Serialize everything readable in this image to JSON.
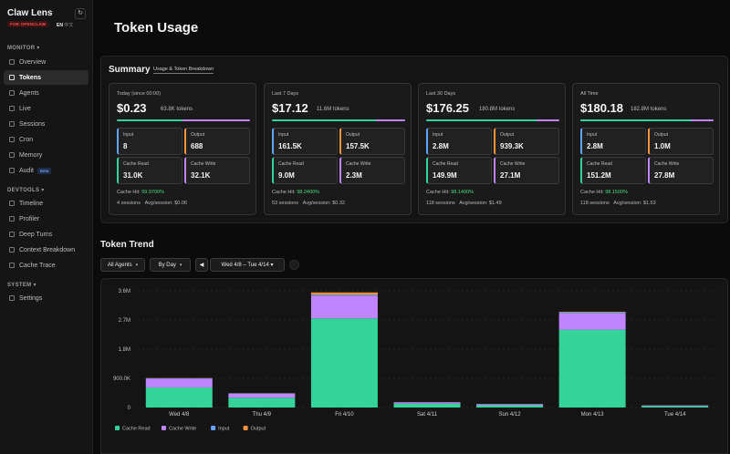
{
  "sidebar": {
    "brand": "Claw Lens",
    "badge": "FOR OPENCLAW",
    "lang_en": "EN",
    "lang_zh": "中文",
    "sections": {
      "monitor": "MONITOR",
      "devtools": "DEVTOOLS",
      "system": "SYSTEM"
    },
    "monitor_items": [
      "Overview",
      "Tokens",
      "Agents",
      "Live",
      "Sessions",
      "Cron",
      "Memory",
      "Audit"
    ],
    "audit_badge": "Beta",
    "devtools_items": [
      "Timeline",
      "Profiler",
      "Deep Turns",
      "Context Breakdown",
      "Cache Trace"
    ],
    "system_items": [
      "Settings"
    ]
  },
  "page": {
    "title": "Token Usage"
  },
  "summary": {
    "title": "Summary",
    "subtitle": "Usage & Token Breakdown",
    "labels": {
      "input": "Input",
      "output": "Output",
      "cache_read": "Cache Read",
      "cache_write": "Cache Write"
    },
    "cards": [
      {
        "period": "Today (since 00:00)",
        "cost": "$0.23",
        "tokens": "63.8K tokens",
        "input": "8",
        "output": "688",
        "cache_read": "31.0K",
        "cache_write": "32.1K",
        "hit_label": "Cache Hit:",
        "hit": "99.9700%",
        "sessions": "4 sessions",
        "avg": "Avg/session: $0.06",
        "read_share": 0.49
      },
      {
        "period": "Last 7 Days",
        "cost": "$17.12",
        "tokens": "11.6M tokens",
        "input": "161.5K",
        "output": "157.5K",
        "cache_read": "9.0M",
        "cache_write": "2.3M",
        "hit_label": "Cache Hit:",
        "hit": "98.2400%",
        "sessions": "53 sessions",
        "avg": "Avg/session: $0.32",
        "read_share": 0.78
      },
      {
        "period": "Last 30 Days",
        "cost": "$176.25",
        "tokens": "180.8M tokens",
        "input": "2.8M",
        "output": "939.3K",
        "cache_read": "149.9M",
        "cache_write": "27.1M",
        "hit_label": "Cache Hit:",
        "hit": "98.1400%",
        "sessions": "118 sessions",
        "avg": "Avg/session: $1.49",
        "read_share": 0.83
      },
      {
        "period": "All Time",
        "cost": "$180.18",
        "tokens": "182.8M tokens",
        "input": "2.8M",
        "output": "1.0M",
        "cache_read": "151.2M",
        "cache_write": "27.8M",
        "hit_label": "Cache Hit:",
        "hit": "98.1500%",
        "sessions": "118 sessions",
        "avg": "Avg/session: $1.53",
        "read_share": 0.83
      }
    ]
  },
  "trend": {
    "title": "Token Trend",
    "agents_select": "All Agents",
    "group_select": "By Day",
    "prev_icon": "◀",
    "range": "Wed 4/8 – Tue 4/14",
    "range_chevron": "▾"
  },
  "colors": {
    "cache_read": "#34d399",
    "cache_write": "#c084fc",
    "input": "#60a5fa",
    "output": "#fb923c"
  },
  "chart_data": {
    "type": "bar",
    "stacked": true,
    "categories": [
      "Wed 4/8",
      "Thu 4/9",
      "Fri 4/10",
      "Sat 4/11",
      "Sun 4/12",
      "Mon 4/13",
      "Tue 4/14"
    ],
    "series": [
      {
        "name": "Cache Read",
        "color": "#34d399",
        "values": [
          620000,
          300000,
          2750000,
          120000,
          70000,
          2400000,
          45000
        ]
      },
      {
        "name": "Cache Write",
        "color": "#c084fc",
        "values": [
          270000,
          130000,
          700000,
          40000,
          35000,
          500000,
          20000
        ]
      },
      {
        "name": "Input",
        "color": "#60a5fa",
        "values": [
          10000,
          8000,
          30000,
          5000,
          3000,
          35000,
          2000
        ]
      },
      {
        "name": "Output",
        "color": "#fb923c",
        "values": [
          8000,
          5000,
          70000,
          3000,
          2000,
          20000,
          1000
        ]
      }
    ],
    "y_ticks": [
      0,
      900000,
      1800000,
      2700000,
      3600000
    ],
    "y_tick_labels": [
      "0",
      "900.0K",
      "1.8M",
      "2.7M",
      "3.6M"
    ],
    "ylim": [
      0,
      3600000
    ],
    "grid": true,
    "legend_placement": "bottom-left"
  }
}
